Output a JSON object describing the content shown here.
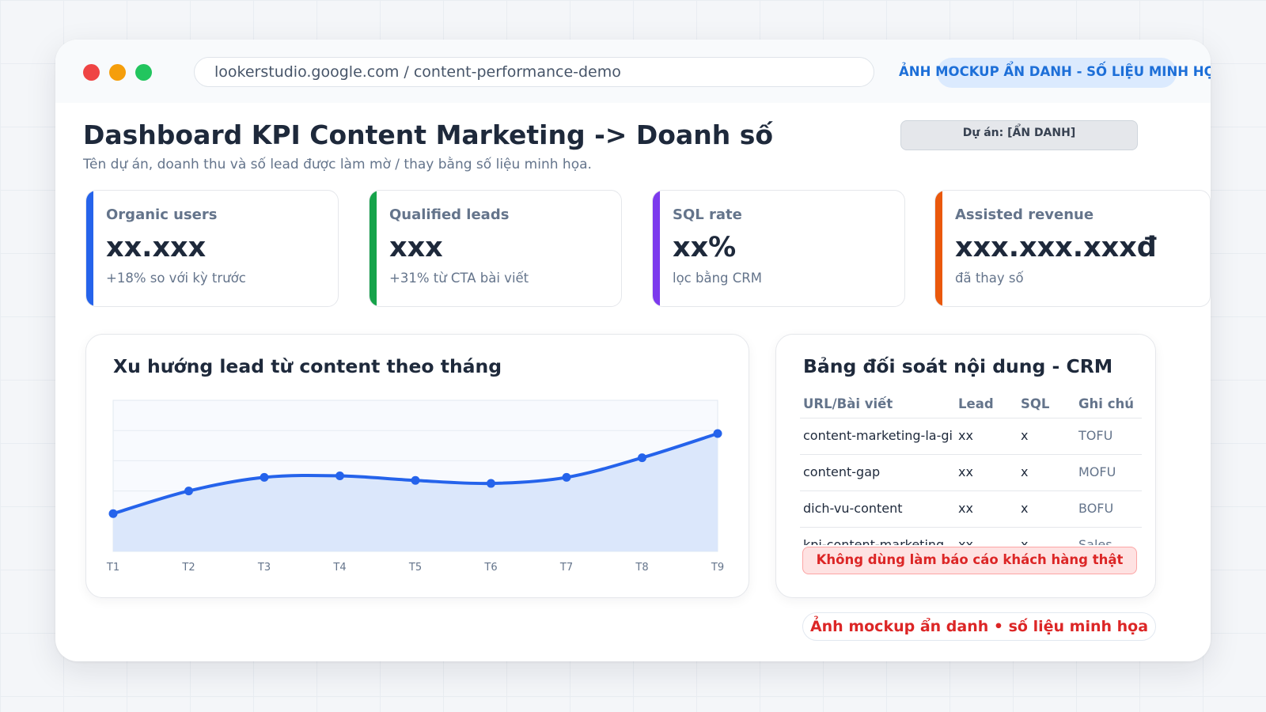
{
  "browser": {
    "url": "lookerstudio.google.com / content-performance-demo",
    "banner": "ẢNH MOCKUP ẨN DANH - SỐ LIỆU MINH HỌA"
  },
  "header": {
    "title": "Dashboard KPI Content Marketing -> Doanh số",
    "subtitle": "Tên dự án, doanh thu và số lead được làm mờ / thay bằng số liệu minh họa.",
    "project_badge": "Dự án: [ẨN DANH]"
  },
  "kpis": [
    {
      "label": "Organic users",
      "value": "xx.xxx",
      "note": "+18% so với kỳ trước",
      "color": "#2563eb"
    },
    {
      "label": "Qualified leads",
      "value": "xxx",
      "note": "+31% từ CTA bài viết",
      "color": "#16a34a"
    },
    {
      "label": "SQL rate",
      "value": "xx%",
      "note": "lọc bằng CRM",
      "color": "#7c3aed"
    },
    {
      "label": "Assisted revenue",
      "value": "xxx.xxx.xxxđ",
      "note": "đã thay số",
      "color": "#ea580c"
    }
  ],
  "chart_card": {
    "title": "Xu hướng lead từ content theo tháng"
  },
  "chart_data": {
    "type": "area",
    "categories": [
      "T1",
      "T2",
      "T3",
      "T4",
      "T5",
      "T6",
      "T7",
      "T8",
      "T9"
    ],
    "values": [
      25,
      40,
      49,
      50,
      47,
      45,
      49,
      62,
      78
    ],
    "ylim": [
      0,
      100
    ],
    "grid": true,
    "line_color": "#2563eb",
    "fill_color": "#dbe7fb"
  },
  "table_card": {
    "title": "Bảng đối soát nội dung - CRM",
    "headers": [
      "URL/Bài viết",
      "Lead",
      "SQL",
      "Ghi chú"
    ],
    "rows": [
      [
        "content-marketing-la-gi",
        "xx",
        "x",
        "TOFU"
      ],
      [
        "content-gap",
        "xx",
        "x",
        "MOFU"
      ],
      [
        "dich-vu-content",
        "xx",
        "x",
        "BOFU"
      ],
      [
        "kpi-content-marketing",
        "xx",
        "x",
        "Sales"
      ]
    ],
    "warning": "Không dùng làm báo cáo khách hàng thật"
  },
  "footer_badge": "Ảnh mockup ẩn danh • số liệu minh họa"
}
